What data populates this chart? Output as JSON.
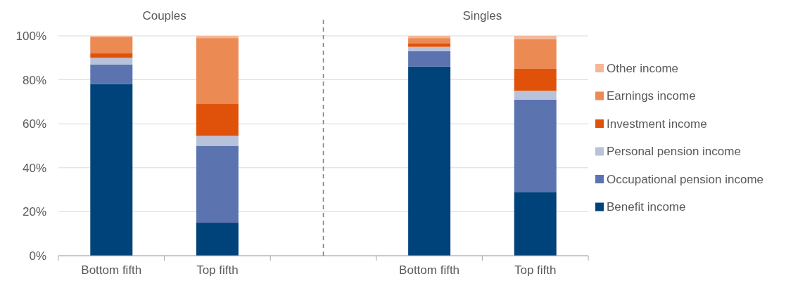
{
  "chart_data": {
    "type": "bar",
    "stacked": true,
    "categories": [
      "Bottom fifth",
      "Top fifth",
      null,
      "Bottom fifth",
      "Top fifth"
    ],
    "series": [
      {
        "name": "Benefit income",
        "color": "#00427a",
        "values": [
          78,
          15,
          null,
          86,
          29
        ]
      },
      {
        "name": "Occupational pension income",
        "color": "#5b74b0",
        "values": [
          9,
          35,
          null,
          7,
          42
        ]
      },
      {
        "name": "Personal pension income",
        "color": "#b8c2d9",
        "values": [
          3,
          4.5,
          null,
          2,
          4
        ]
      },
      {
        "name": "Investment income",
        "color": "#e0520a",
        "values": [
          2,
          14.5,
          null,
          1.5,
          10
        ]
      },
      {
        "name": "Earnings income",
        "color": "#eb8a52",
        "values": [
          7.5,
          30,
          null,
          2.5,
          13.5
        ]
      },
      {
        "name": "Other income",
        "color": "#f4b799",
        "values": [
          0.5,
          1,
          null,
          1,
          1.5
        ]
      }
    ],
    "ylim": [
      0,
      100
    ],
    "yticks": [
      {
        "value": 0,
        "label": "0%"
      },
      {
        "value": 20,
        "label": "20%"
      },
      {
        "value": 40,
        "label": "40%"
      },
      {
        "value": 60,
        "label": "60%"
      },
      {
        "value": 80,
        "label": "80%"
      },
      {
        "value": 100,
        "label": "100%"
      }
    ],
    "grid": "y",
    "legend": "right",
    "annotations": [
      "Couples",
      "Singles"
    ]
  }
}
